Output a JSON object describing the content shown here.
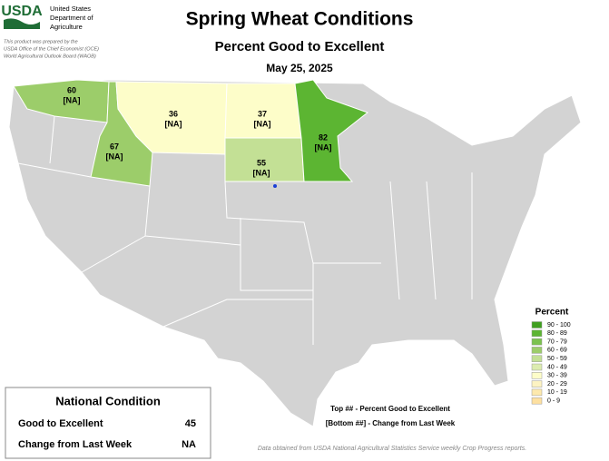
{
  "header": {
    "logo": "USDA",
    "agency": [
      "United States",
      "Department of",
      "Agriculture"
    ],
    "credit": [
      "This product was prepared by the",
      "USDA Office of the Chief Economist (OCE)",
      "World Agricultural Outlook Board (WAOB)"
    ],
    "title": "Spring Wheat Conditions",
    "subtitle": "Percent Good to Excellent",
    "date": "May 25, 2025"
  },
  "states": [
    {
      "value": 60,
      "change": "[NA]",
      "color": "#9ccd6a"
    },
    {
      "value": 67,
      "change": "[NA]",
      "color": "#9ccd6a"
    },
    {
      "value": 36,
      "change": "[NA]",
      "color": "#fdfdc9"
    },
    {
      "value": 37,
      "change": "[NA]",
      "color": "#fdfdc9"
    },
    {
      "value": 55,
      "change": "[NA]",
      "color": "#c3e095"
    },
    {
      "value": 82,
      "change": "[NA]",
      "color": "#5cb532"
    }
  ],
  "legend": {
    "title": "Percent",
    "items": [
      {
        "label": "90 - 100",
        "color": "#3f9f1f"
      },
      {
        "label": "80 - 89",
        "color": "#5cb532"
      },
      {
        "label": "70 - 79",
        "color": "#7bc24e"
      },
      {
        "label": "60 - 69",
        "color": "#9ccd6a"
      },
      {
        "label": "50 - 59",
        "color": "#c3e095"
      },
      {
        "label": "40 - 49",
        "color": "#dcecb0"
      },
      {
        "label": "30 - 39",
        "color": "#fdfdc9"
      },
      {
        "label": "20 - 29",
        "color": "#fdf3c2"
      },
      {
        "label": "10 - 19",
        "color": "#fde9ac"
      },
      {
        "label": "0 - 9",
        "color": "#fde0a0"
      }
    ]
  },
  "key": [
    "Top ## - Percent Good to Excellent",
    "[Bottom ##] - Change from Last Week"
  ],
  "national": {
    "title": "National Condition",
    "rows": [
      [
        "Good to Excellent",
        "45"
      ],
      [
        "Change from Last Week",
        "NA"
      ]
    ]
  },
  "footnote": "Data obtained from USDA National Agricultural Statistics Service weekly Crop Progress reports."
}
